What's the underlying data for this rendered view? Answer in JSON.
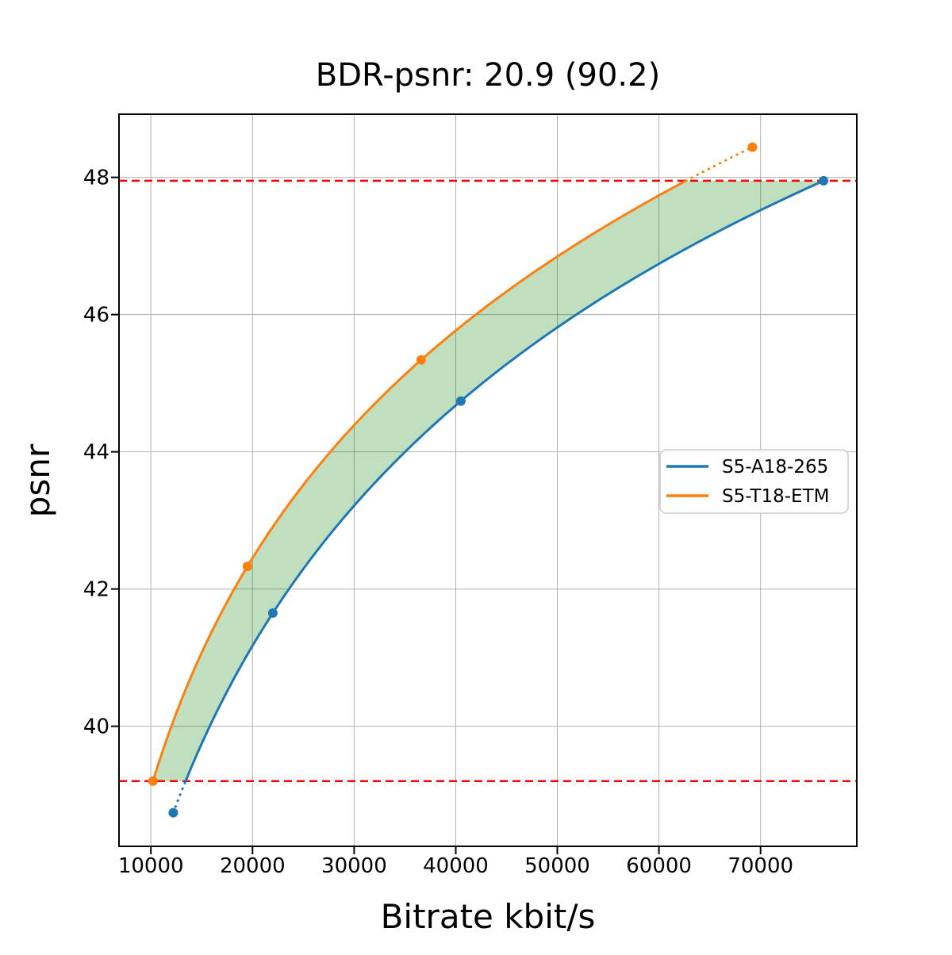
{
  "chart_data": {
    "type": "line",
    "title": "BDR-psnr: 20.9 (90.2)",
    "xlabel": "Bitrate kbit/s",
    "ylabel": "psnr",
    "xlim": [
      6860,
      79470
    ],
    "ylim": [
      38.25,
      48.92
    ],
    "x_ticks": [
      10000,
      20000,
      30000,
      40000,
      50000,
      60000,
      70000
    ],
    "y_ticks": [
      40,
      42,
      44,
      46,
      48
    ],
    "grid": true,
    "grid_color": "#b0b0b0",
    "legend_position": "center-right",
    "series": [
      {
        "name": "S5-A18-265",
        "color": "#1f77b4",
        "x": [
          12200,
          22000,
          40500,
          76200
        ],
        "y": [
          38.74,
          41.65,
          44.74,
          47.95
        ]
      },
      {
        "name": "S5-T18-ETM",
        "color": "#ff7f0e",
        "x": [
          10200,
          19500,
          36600,
          69200
        ],
        "y": [
          39.2,
          42.33,
          45.34,
          48.44
        ]
      }
    ],
    "reference_lines": [
      {
        "y": 47.95,
        "color": "#ff0000",
        "style": "dashed"
      },
      {
        "y": 39.2,
        "color": "#ff0000",
        "style": "dashed"
      }
    ],
    "overlap_region": {
      "y_min": 39.2,
      "y_max": 47.95,
      "fill_color": "#008000",
      "fill_opacity": 0.25
    },
    "interpolation": "cubic-in-log-x"
  }
}
